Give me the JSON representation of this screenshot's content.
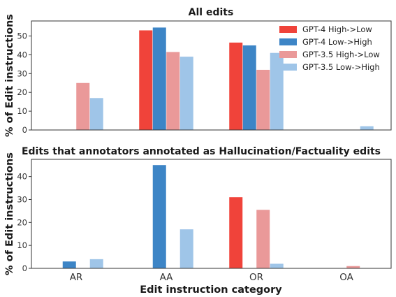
{
  "chart_data": [
    {
      "type": "bar",
      "title": "All edits",
      "ylabel": "% of Edit instructions",
      "xlabel": "",
      "categories": [
        "AR",
        "AA",
        "OR",
        "OA"
      ],
      "ylim": [
        0,
        58
      ],
      "yticks": [
        0,
        10,
        20,
        30,
        40,
        50
      ],
      "grid": false,
      "show_xtick_labels": false,
      "legend": "top-right",
      "series": [
        {
          "name": "GPT-4 High->Low",
          "color": "#f0433a",
          "values": [
            0,
            53,
            46.5,
            0
          ]
        },
        {
          "name": "GPT-4 Low->High",
          "color": "#3d85c6",
          "values": [
            0,
            54.5,
            45,
            0
          ]
        },
        {
          "name": "GPT-3.5 High->Low",
          "color": "#ea9999",
          "values": [
            25,
            41.5,
            32,
            0
          ]
        },
        {
          "name": "GPT-3.5 Low->High",
          "color": "#9fc5e8",
          "values": [
            17,
            39,
            41,
            2
          ]
        }
      ]
    },
    {
      "type": "bar",
      "title": "Edits that annotators annotated as Hallucination/Factuality edits",
      "ylabel": "% of Edit instructions",
      "xlabel": "Edit instruction category",
      "categories": [
        "AR",
        "AA",
        "OR",
        "OA"
      ],
      "ylim": [
        0,
        47.5
      ],
      "yticks": [
        0,
        10,
        20,
        30,
        40
      ],
      "grid": false,
      "show_xtick_labels": true,
      "legend": "none",
      "series": [
        {
          "name": "GPT-4 High->Low",
          "color": "#f0433a",
          "values": [
            0,
            0,
            31,
            0
          ]
        },
        {
          "name": "GPT-4 Low->High",
          "color": "#3d85c6",
          "values": [
            3,
            45,
            0,
            0
          ]
        },
        {
          "name": "GPT-3.5 High->Low",
          "color": "#ea9999",
          "values": [
            0,
            0,
            25.5,
            1
          ]
        },
        {
          "name": "GPT-3.5 Low->High",
          "color": "#9fc5e8",
          "values": [
            4,
            17,
            2,
            0
          ]
        }
      ]
    }
  ]
}
